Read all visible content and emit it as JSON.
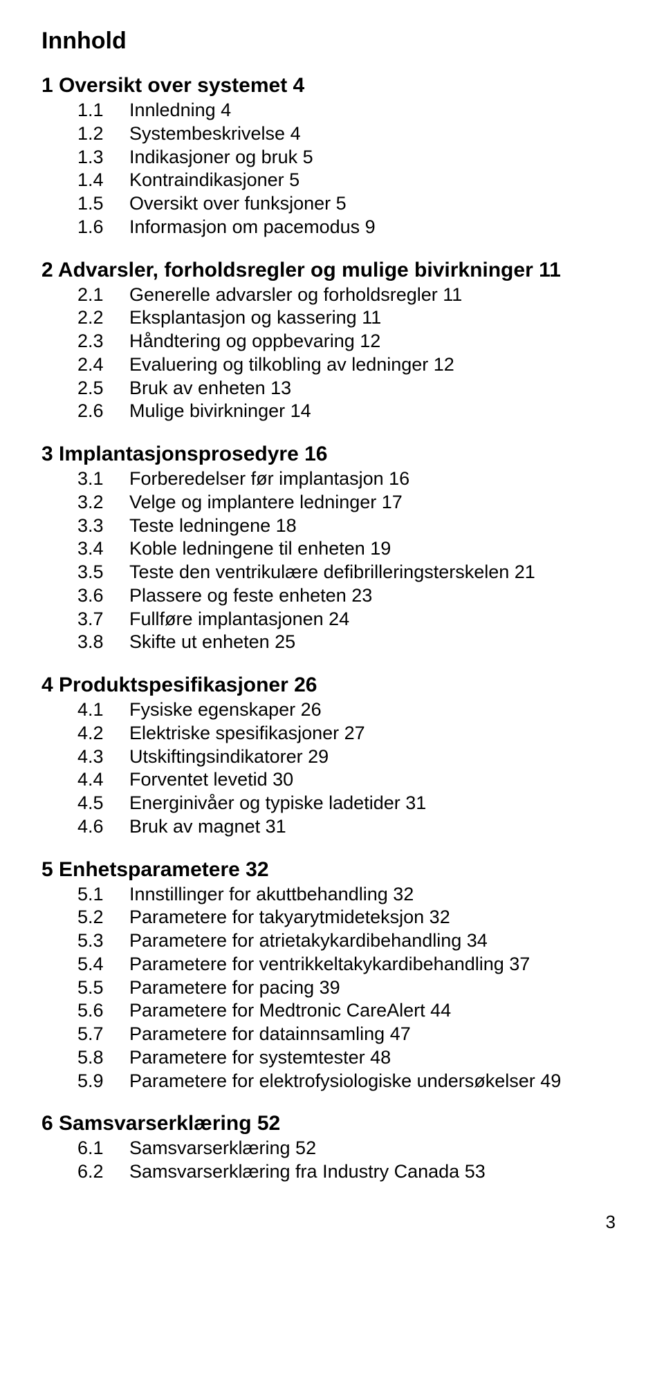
{
  "title": "Innhold",
  "page_number": "3",
  "sections": [
    {
      "heading": "1 Oversikt over systemet  4",
      "items": [
        {
          "num": "1.1",
          "text": "Innledning  4"
        },
        {
          "num": "1.2",
          "text": "Systembeskrivelse  4"
        },
        {
          "num": "1.3",
          "text": "Indikasjoner og bruk  5"
        },
        {
          "num": "1.4",
          "text": "Kontraindikasjoner  5"
        },
        {
          "num": "1.5",
          "text": "Oversikt over funksjoner  5"
        },
        {
          "num": "1.6",
          "text": "Informasjon om pacemodus  9"
        }
      ]
    },
    {
      "heading": "2 Advarsler, forholdsregler og mulige bivirkninger  11",
      "items": [
        {
          "num": "2.1",
          "text": "Generelle advarsler og forholdsregler  11"
        },
        {
          "num": "2.2",
          "text": "Eksplantasjon og kassering  11"
        },
        {
          "num": "2.3",
          "text": "Håndtering og oppbevaring  12"
        },
        {
          "num": "2.4",
          "text": "Evaluering og tilkobling av ledninger  12"
        },
        {
          "num": "2.5",
          "text": "Bruk av enheten  13"
        },
        {
          "num": "2.6",
          "text": "Mulige bivirkninger  14"
        }
      ]
    },
    {
      "heading": "3 Implantasjonsprosedyre  16",
      "items": [
        {
          "num": "3.1",
          "text": "Forberedelser før implantasjon  16"
        },
        {
          "num": "3.2",
          "text": "Velge og implantere ledninger  17"
        },
        {
          "num": "3.3",
          "text": "Teste ledningene  18"
        },
        {
          "num": "3.4",
          "text": "Koble ledningene til enheten  19"
        },
        {
          "num": "3.5",
          "text": "Teste den ventrikulære defibrilleringsterskelen  21"
        },
        {
          "num": "3.6",
          "text": "Plassere og feste enheten  23"
        },
        {
          "num": "3.7",
          "text": "Fullføre implantasjonen  24"
        },
        {
          "num": "3.8",
          "text": "Skifte ut enheten  25"
        }
      ]
    },
    {
      "heading": "4 Produktspesifikasjoner  26",
      "items": [
        {
          "num": "4.1",
          "text": "Fysiske egenskaper  26"
        },
        {
          "num": "4.2",
          "text": "Elektriske spesifikasjoner  27"
        },
        {
          "num": "4.3",
          "text": "Utskiftingsindikatorer  29"
        },
        {
          "num": "4.4",
          "text": "Forventet levetid  30"
        },
        {
          "num": "4.5",
          "text": "Energinivåer og typiske ladetider  31"
        },
        {
          "num": "4.6",
          "text": "Bruk av magnet  31"
        }
      ]
    },
    {
      "heading": "5 Enhetsparametere  32",
      "items": [
        {
          "num": "5.1",
          "text": "Innstillinger for akuttbehandling  32"
        },
        {
          "num": "5.2",
          "text": "Parametere for takyarytmideteksjon  32"
        },
        {
          "num": "5.3",
          "text": "Parametere for atrietakykardibehandling  34"
        },
        {
          "num": "5.4",
          "text": "Parametere for ventrikkeltakykardibehandling  37"
        },
        {
          "num": "5.5",
          "text": "Parametere for pacing  39"
        },
        {
          "num": "5.6",
          "text": "Parametere for Medtronic CareAlert  44"
        },
        {
          "num": "5.7",
          "text": "Parametere for datainnsamling  47"
        },
        {
          "num": "5.8",
          "text": "Parametere for systemtester  48"
        },
        {
          "num": "5.9",
          "text": "Parametere for elektrofysiologiske undersøkelser  49"
        }
      ]
    },
    {
      "heading": "6 Samsvarserklæring  52",
      "items": [
        {
          "num": "6.1",
          "text": "Samsvarserklæring  52"
        },
        {
          "num": "6.2",
          "text": "Samsvarserklæring fra Industry Canada  53"
        }
      ]
    }
  ]
}
